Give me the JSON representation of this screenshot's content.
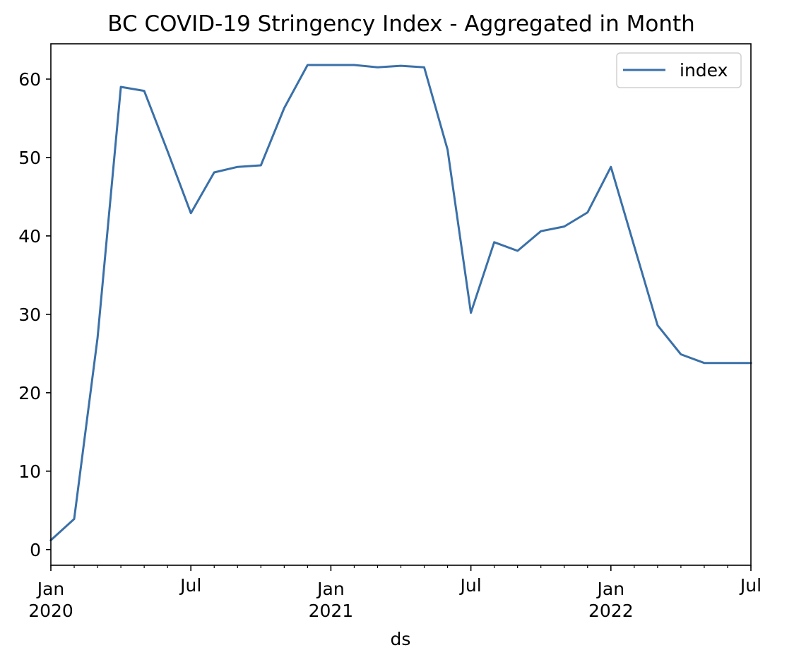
{
  "chart_data": {
    "type": "line",
    "title": "BC COVID-19 Stringency Index - Aggregated in Month",
    "xlabel": "ds",
    "ylabel": "",
    "x": [
      "2020-01",
      "2020-02",
      "2020-03",
      "2020-04",
      "2020-05",
      "2020-06",
      "2020-07",
      "2020-08",
      "2020-09",
      "2020-10",
      "2020-11",
      "2020-12",
      "2021-01",
      "2021-02",
      "2021-03",
      "2021-04",
      "2021-05",
      "2021-06",
      "2021-07",
      "2021-08",
      "2021-09",
      "2021-10",
      "2021-11",
      "2021-12",
      "2022-01",
      "2022-02",
      "2022-03",
      "2022-04",
      "2022-05",
      "2022-06",
      "2022-07"
    ],
    "series": [
      {
        "name": "index",
        "color": "#3a70a8",
        "values": [
          1.2,
          3.9,
          27.0,
          59.0,
          58.5,
          50.8,
          42.9,
          48.1,
          48.8,
          49.0,
          56.3,
          61.8,
          61.8,
          61.8,
          61.5,
          61.7,
          61.5,
          51.0,
          30.2,
          39.2,
          38.1,
          40.6,
          41.2,
          43.0,
          48.8,
          38.7,
          28.6,
          24.9,
          23.8,
          23.8,
          23.8
        ]
      }
    ],
    "ylim": [
      -2,
      64.5
    ],
    "yticks": [
      0,
      10,
      20,
      30,
      40,
      50,
      60
    ],
    "xticks": [
      {
        "x": "2020-01",
        "month": "Jan",
        "year": "2020"
      },
      {
        "x": "2020-07",
        "month": "Jul",
        "year": ""
      },
      {
        "x": "2021-01",
        "month": "Jan",
        "year": "2021"
      },
      {
        "x": "2021-07",
        "month": "Jul",
        "year": ""
      },
      {
        "x": "2022-01",
        "month": "Jan",
        "year": "2022"
      },
      {
        "x": "2022-07",
        "month": "Jul",
        "year": ""
      }
    ],
    "grid": false,
    "legend_position": "top-right"
  }
}
